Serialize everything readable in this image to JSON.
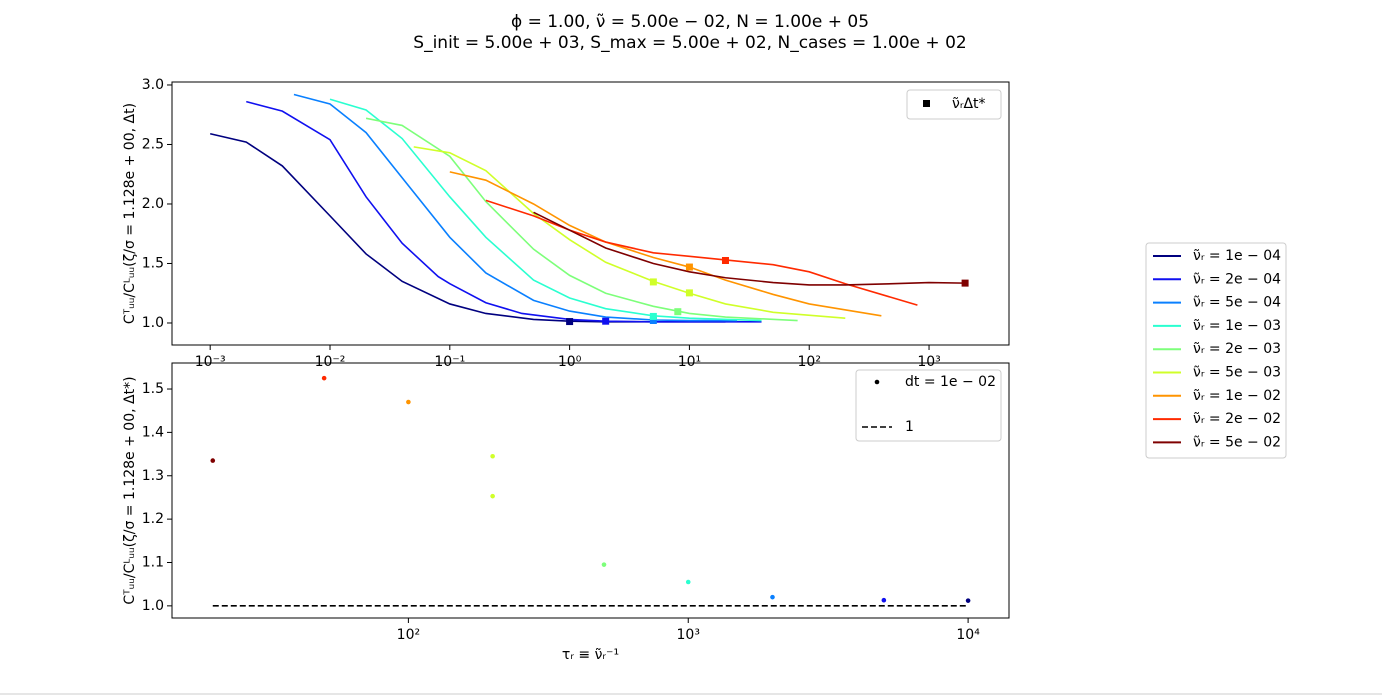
{
  "title_lines": [
    "ϕ = 1.00, ν̃ = 5.00e − 02, N = 1.00e + 05",
    "S_init = 5.00e + 03, S_max = 5.00e + 02, N_cases = 1.00e + 02"
  ],
  "chart_data": [
    {
      "type": "line",
      "y_label": "Cᵀᵤᵤ/Cᴸᵤᵤ(ζ/σ = 1.128e + 00, Δt)",
      "xscale": "log",
      "xlim": [
        0.00048,
        4650
      ],
      "ylim": [
        0.815,
        3.025
      ],
      "xticks": [
        {
          "value": 0.001,
          "label": "10⁻³"
        },
        {
          "value": 0.01,
          "label": "10⁻²"
        },
        {
          "value": 0.1,
          "label": "10⁻¹"
        },
        {
          "value": 1,
          "label": "10⁰"
        },
        {
          "value": 10,
          "label": "10¹"
        },
        {
          "value": 100,
          "label": "10²"
        },
        {
          "value": 1000,
          "label": "10³"
        }
      ],
      "yticks": [
        {
          "value": 1,
          "label": "1.0"
        },
        1.5,
        {
          "value": 2,
          "label": "2.0"
        },
        2.5,
        {
          "value": 3,
          "label": "3.0"
        }
      ],
      "series": [
        {
          "name": "ν̃ᵣ = 1e − 04",
          "color": "#00007f",
          "x": [
            0.001,
            0.002,
            0.004,
            0.01,
            0.02,
            0.04,
            0.1,
            0.2,
            0.5,
            1,
            2,
            5,
            10,
            20
          ],
          "values": [
            2.59,
            2.52,
            2.32,
            1.9,
            1.58,
            1.35,
            1.16,
            1.08,
            1.03,
            1.015,
            1.01,
            1.01,
            1.01,
            1.01
          ]
        },
        {
          "name": "ν̃ᵣ = 2e − 04",
          "color": "#1010f0",
          "x": [
            0.002,
            0.004,
            0.01,
            0.02,
            0.04,
            0.08,
            0.1,
            0.2,
            0.4,
            1,
            2,
            5,
            10,
            40
          ],
          "values": [
            2.86,
            2.78,
            2.54,
            2.06,
            1.67,
            1.39,
            1.33,
            1.17,
            1.08,
            1.03,
            1.015,
            1.01,
            1.01,
            1.01
          ]
        },
        {
          "name": "ν̃ᵣ = 5e − 04",
          "color": "#0a80ff",
          "x": [
            0.005,
            0.01,
            0.02,
            0.04,
            0.1,
            0.2,
            0.5,
            1,
            2,
            5,
            10,
            25
          ],
          "values": [
            2.92,
            2.84,
            2.6,
            2.22,
            1.72,
            1.42,
            1.19,
            1.1,
            1.05,
            1.025,
            1.02,
            1.02
          ]
        },
        {
          "name": "ν̃ᵣ = 1e − 03",
          "color": "#2affd0",
          "x": [
            0.01,
            0.02,
            0.04,
            0.1,
            0.2,
            0.5,
            1,
            2,
            5,
            10,
            40
          ],
          "values": [
            2.88,
            2.79,
            2.55,
            2.06,
            1.72,
            1.36,
            1.21,
            1.12,
            1.06,
            1.04,
            1.02
          ]
        },
        {
          "name": "ν̃ᵣ = 2e − 03",
          "color": "#7dff7a",
          "x": [
            0.02,
            0.04,
            0.1,
            0.2,
            0.5,
            1,
            2,
            5,
            10,
            20,
            80
          ],
          "values": [
            2.72,
            2.66,
            2.4,
            2.02,
            1.62,
            1.4,
            1.25,
            1.14,
            1.08,
            1.05,
            1.02
          ]
        },
        {
          "name": "ν̃ᵣ = 5e − 03",
          "color": "#d0ff29",
          "x": [
            0.05,
            0.1,
            0.2,
            0.5,
            1,
            2,
            5,
            10,
            20,
            50,
            200
          ],
          "values": [
            2.48,
            2.43,
            2.28,
            1.92,
            1.7,
            1.51,
            1.35,
            1.25,
            1.16,
            1.09,
            1.04
          ]
        },
        {
          "name": "ν̃ᵣ = 1e − 02",
          "color": "#ff9400",
          "x": [
            0.1,
            0.2,
            0.5,
            1,
            2,
            5,
            10,
            20,
            50,
            100,
            400
          ],
          "values": [
            2.27,
            2.2,
            2.0,
            1.82,
            1.68,
            1.55,
            1.47,
            1.36,
            1.24,
            1.16,
            1.06
          ]
        },
        {
          "name": "ν̃ᵣ = 2e − 02",
          "color": "#ff2a00",
          "x": [
            0.2,
            0.5,
            1,
            2,
            5,
            10,
            20,
            50,
            100,
            200,
            800
          ],
          "values": [
            2.03,
            1.9,
            1.78,
            1.68,
            1.59,
            1.56,
            1.53,
            1.49,
            1.43,
            1.33,
            1.15
          ]
        },
        {
          "name": "ν̃ᵣ = 5e − 02",
          "color": "#7f0000",
          "x": [
            0.5,
            1,
            2,
            5,
            10,
            20,
            50,
            100,
            200,
            500,
            1000,
            2000
          ],
          "values": [
            1.93,
            1.78,
            1.63,
            1.5,
            1.43,
            1.38,
            1.34,
            1.32,
            1.32,
            1.33,
            1.34,
            1.335
          ]
        }
      ],
      "markers": {
        "name": "ν̃ᵣΔt*",
        "legend_color": "#000000",
        "x": [
          1,
          2,
          5,
          5,
          8,
          5,
          10,
          10,
          20,
          2000
        ],
        "values": [
          1.012,
          1.015,
          1.021,
          1.055,
          1.095,
          1.345,
          1.253,
          1.47,
          1.525,
          1.335
        ],
        "colors": [
          "#00007f",
          "#1010f0",
          "#0a80ff",
          "#2affd0",
          "#7dff7a",
          "#d0ff29",
          "#d0ff29",
          "#ff9400",
          "#ff2a00",
          "#7f0000"
        ]
      }
    },
    {
      "type": "scatter",
      "y_label": "Cᵀᵤᵤ/Cᴸᵤᵤ(ζ/σ = 1.128e + 00, Δt*)",
      "x_label": "τᵣ ≡ ν̃ᵣ⁻¹",
      "xscale": "log",
      "xlim": [
        14.3,
        14000
      ],
      "ylim": [
        0.972,
        1.56
      ],
      "xticks": [
        {
          "value": 100,
          "label": "10²"
        },
        {
          "value": 1000,
          "label": "10³"
        },
        {
          "value": 10000,
          "label": "10⁴"
        }
      ],
      "yticks": [
        {
          "value": 1,
          "label": "1.0"
        },
        1.1,
        1.2,
        1.3,
        1.4,
        1.5
      ],
      "series": [
        {
          "name": "dt = 1e − 02",
          "color": "#000000",
          "x": [
            20,
            50,
            100,
            200,
            200,
            500,
            1000,
            2000,
            5000,
            10000
          ],
          "values": [
            1.335,
            1.525,
            1.47,
            1.345,
            1.253,
            1.095,
            1.055,
            1.02,
            1.013,
            1.012
          ],
          "colors": [
            "#7f0000",
            "#ff2a00",
            "#ff9400",
            "#d0ff29",
            "#d0ff29",
            "#7dff7a",
            "#2affd0",
            "#0a80ff",
            "#1010f0",
            "#00007f"
          ]
        }
      ],
      "reference_line": {
        "name": "1",
        "color": "#000000",
        "x": [
          20,
          10000
        ],
        "values": [
          1,
          1
        ],
        "dashed": true
      }
    }
  ]
}
